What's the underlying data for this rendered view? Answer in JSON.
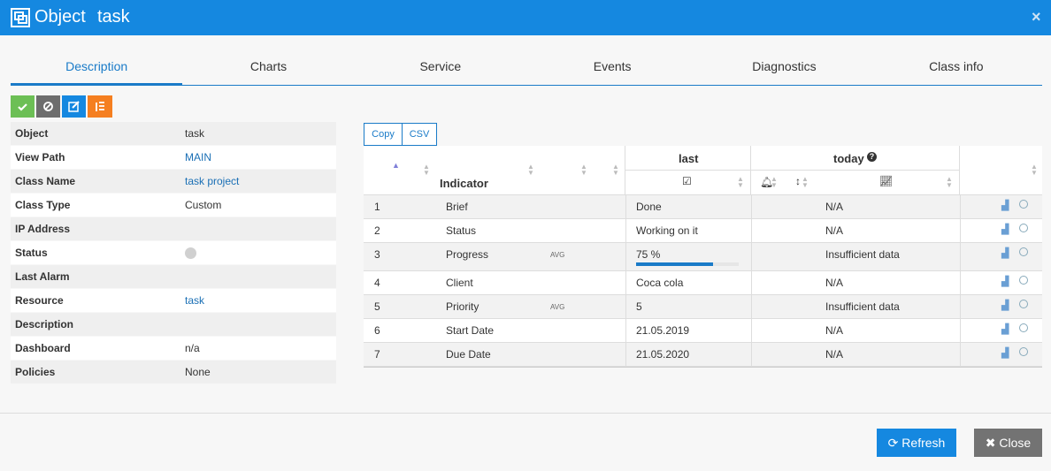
{
  "header": {
    "title": "Object",
    "subtitle": "task"
  },
  "tabs": [
    "Description",
    "Charts",
    "Service",
    "Events",
    "Diagnostics",
    "Class info"
  ],
  "properties": [
    {
      "label": "Object",
      "value": "task"
    },
    {
      "label": "View Path",
      "value": "MAIN",
      "link": true
    },
    {
      "label": "Class Name",
      "value": "task project",
      "link": true
    },
    {
      "label": "Class Type",
      "value": "Custom"
    },
    {
      "label": "IP Address"
    },
    {
      "label": "Status"
    },
    {
      "label": "Last Alarm"
    },
    {
      "label": "Resource",
      "value": "task",
      "link": true
    },
    {
      "label": "Description"
    },
    {
      "label": "Dashboard",
      "value": "n/a"
    },
    {
      "label": "Policies",
      "value": "None"
    }
  ],
  "table_buttons": [
    "Copy",
    "CSV"
  ],
  "indicator_table": {
    "columns": {
      "indicator": "Indicator",
      "last": "last",
      "today": "today"
    },
    "rows": [
      {
        "num": "1",
        "name": "Brief",
        "last": "Done",
        "today": "N/A"
      },
      {
        "num": "2",
        "name": "Status",
        "last": "Working on it",
        "today": "N/A"
      },
      {
        "num": "3",
        "name": "Progress",
        "tag": "AVG",
        "last": "75 %",
        "progress": 75,
        "today": "Insufficient data"
      },
      {
        "num": "4",
        "name": "Client",
        "last": "Coca cola",
        "today": "N/A"
      },
      {
        "num": "5",
        "name": "Priority",
        "tag": "AVG",
        "last": "5",
        "today": "Insufficient data"
      },
      {
        "num": "6",
        "name": "Start Date",
        "last": "21.05.2019",
        "today": "N/A"
      },
      {
        "num": "7",
        "name": "Due Date",
        "last": "21.05.2020",
        "today": "N/A"
      }
    ]
  },
  "footer": {
    "buttons": [
      "Refresh",
      "Close"
    ]
  }
}
